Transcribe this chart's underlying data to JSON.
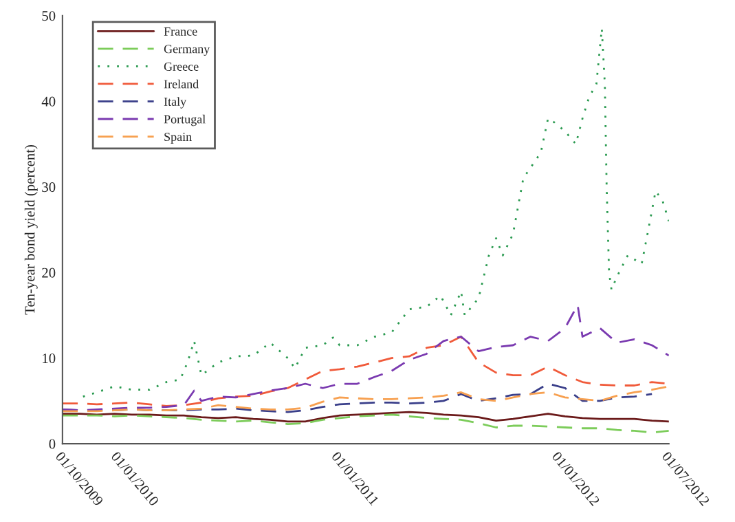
{
  "chart_data": {
    "type": "line",
    "ylabel": "Ten-year bond yield (percent)",
    "x": [
      "2009-10-01",
      "2009-10-30",
      "2009-11-27",
      "2009-12-26",
      "2010-01-24",
      "2010-02-22",
      "2010-03-22",
      "2010-04-20",
      "2010-05-19",
      "2010-06-16",
      "2010-07-15",
      "2010-08-13",
      "2010-09-10",
      "2010-10-09",
      "2010-11-07",
      "2010-12-06",
      "2011-01-03",
      "2011-02-01",
      "2011-03-02",
      "2011-03-30",
      "2011-04-28",
      "2011-05-27",
      "2011-06-24",
      "2011-07-23",
      "2011-08-21",
      "2011-09-19",
      "2011-10-17",
      "2011-11-15",
      "2011-12-14",
      "2012-01-11",
      "2012-02-09",
      "2012-03-09",
      "2012-04-06",
      "2012-05-05",
      "2012-06-03",
      "2012-07-01"
    ],
    "series": [
      {
        "name": "France",
        "color": "#6b1a1a",
        "line_style": "solid",
        "values": [
          3.5,
          3.5,
          3.4,
          3.5,
          3.4,
          3.4,
          3.3,
          3.3,
          3.1,
          3.0,
          3.1,
          2.9,
          2.8,
          2.6,
          2.6,
          3.0,
          3.3,
          3.4,
          3.5,
          3.6,
          3.7,
          3.6,
          3.4,
          3.3,
          3.1,
          2.7,
          2.9,
          3.2,
          3.5,
          3.2,
          3.0,
          2.9,
          2.9,
          2.9,
          2.7,
          2.6
        ]
      },
      {
        "name": "Germany",
        "color": "#7ccc5a",
        "line_style": "dashed",
        "values": [
          3.3,
          3.3,
          3.3,
          3.2,
          3.3,
          3.2,
          3.1,
          3.0,
          2.8,
          2.7,
          2.6,
          2.7,
          2.5,
          2.3,
          2.4,
          2.8,
          3.0,
          3.2,
          3.3,
          3.4,
          3.2,
          3.0,
          2.9,
          2.8,
          2.4,
          1.9,
          2.1,
          2.1,
          2.0,
          1.9,
          1.8,
          1.8,
          1.6,
          1.5,
          1.3,
          1.5
        ]
      },
      {
        "name": "Greece",
        "color": "#2a9a50",
        "line_style": "dotted",
        "x": [
          "2009-11-04",
          "2009-11-27",
          "2009-12-26",
          "2010-01-24",
          "2010-02-22",
          "2010-03-22",
          "2010-04-14",
          "2010-04-26",
          "2010-05-07",
          "2010-05-19",
          "2010-06-16",
          "2010-07-15",
          "2010-08-13",
          "2010-09-10",
          "2010-10-09",
          "2010-10-21",
          "2010-11-07",
          "2010-12-06",
          "2010-12-23",
          "2011-01-03",
          "2011-02-01",
          "2011-03-02",
          "2011-03-30",
          "2011-04-28",
          "2011-05-27",
          "2011-06-19",
          "2011-07-06",
          "2011-07-23",
          "2011-07-29",
          "2011-08-21",
          "2011-09-07",
          "2011-09-19",
          "2011-09-30",
          "2011-10-17",
          "2011-11-03",
          "2011-12-02",
          "2011-12-14",
          "2011-12-25",
          "2012-01-11",
          "2012-01-29",
          "2012-02-09",
          "2012-02-20",
          "2012-03-03",
          "2012-03-12",
          "2012-03-17",
          "2012-03-20",
          "2012-03-24",
          "2012-03-28",
          "2012-04-06",
          "2012-04-24",
          "2012-05-17",
          "2012-05-28",
          "2012-06-09",
          "2012-06-20",
          "2012-07-01"
        ],
        "values": [
          5.5,
          6.0,
          6.7,
          6.3,
          6.3,
          7.2,
          7.5,
          9.5,
          12.0,
          8.0,
          9.5,
          10.2,
          10.3,
          11.8,
          10.0,
          8.8,
          11.2,
          11.5,
          12.4,
          11.5,
          11.5,
          12.5,
          13.0,
          15.7,
          16.0,
          17.3,
          15.0,
          17.8,
          15.0,
          17.0,
          22.0,
          24.0,
          22.0,
          24.5,
          31.0,
          34.0,
          38.0,
          37.5,
          36.5,
          35.0,
          38.0,
          40.5,
          42.0,
          48.5,
          42.0,
          30.0,
          20.0,
          18.0,
          19.5,
          22.0,
          21.0,
          25.0,
          29.5,
          28.5,
          26.0
        ]
      },
      {
        "name": "Ireland",
        "color": "#f05a3a",
        "line_style": "dashed",
        "values": [
          4.7,
          4.7,
          4.6,
          4.7,
          4.8,
          4.6,
          4.4,
          4.5,
          4.8,
          5.3,
          5.5,
          5.6,
          6.1,
          6.5,
          7.5,
          8.5,
          8.7,
          9.0,
          9.5,
          10.0,
          10.2,
          11.2,
          11.5,
          12.5,
          9.5,
          8.3,
          8.0,
          8.0,
          9.0,
          8.0,
          7.2,
          6.9,
          6.8,
          6.8,
          7.2,
          7.0
        ]
      },
      {
        "name": "Italy",
        "color": "#3a3f8a",
        "line_style": "dashed",
        "values": [
          4.0,
          3.9,
          3.9,
          3.9,
          4.0,
          3.9,
          3.9,
          3.9,
          4.0,
          4.0,
          4.1,
          3.9,
          3.8,
          3.7,
          3.9,
          4.3,
          4.6,
          4.7,
          4.8,
          4.8,
          4.7,
          4.8,
          5.0,
          5.8,
          5.0,
          5.3,
          5.7,
          5.8,
          7.0,
          6.5,
          5.0,
          5.0,
          5.4,
          5.5,
          5.8,
          null
        ]
      },
      {
        "name": "Portugal",
        "color": "#7a3ab0",
        "line_style": "dashed",
        "x": [
          "2009-10-01",
          "2009-10-30",
          "2009-11-27",
          "2009-12-26",
          "2010-01-24",
          "2010-02-22",
          "2010-03-22",
          "2010-04-20",
          "2010-05-07",
          "2010-05-19",
          "2010-06-16",
          "2010-07-15",
          "2010-08-13",
          "2010-09-10",
          "2010-10-09",
          "2010-11-07",
          "2010-12-06",
          "2011-01-03",
          "2011-02-01",
          "2011-03-02",
          "2011-03-30",
          "2011-04-28",
          "2011-05-27",
          "2011-06-24",
          "2011-07-23",
          "2011-08-21",
          "2011-09-19",
          "2011-10-17",
          "2011-11-15",
          "2011-12-14",
          "2012-01-11",
          "2012-02-01",
          "2012-02-09",
          "2012-03-09",
          "2012-04-06",
          "2012-05-05",
          "2012-06-03",
          "2012-07-01"
        ],
        "values": [
          4.0,
          3.9,
          4.0,
          4.1,
          4.2,
          4.2,
          4.3,
          4.5,
          6.2,
          5.0,
          5.5,
          5.4,
          5.8,
          6.2,
          6.5,
          7.0,
          6.5,
          7.0,
          7.0,
          7.8,
          8.5,
          9.8,
          10.5,
          12.0,
          12.5,
          10.8,
          11.3,
          11.5,
          12.5,
          12.0,
          13.5,
          16.2,
          12.5,
          13.5,
          11.8,
          12.2,
          11.5,
          10.3
        ]
      },
      {
        "name": "Spain",
        "color": "#f7a050",
        "line_style": "dashed",
        "values": [
          3.8,
          3.8,
          3.8,
          3.9,
          4.0,
          3.9,
          3.9,
          4.0,
          4.1,
          4.5,
          4.3,
          4.1,
          4.0,
          4.0,
          4.2,
          4.9,
          5.4,
          5.3,
          5.2,
          5.2,
          5.3,
          5.4,
          5.6,
          6.0,
          5.2,
          5.0,
          5.4,
          5.8,
          6.0,
          5.4,
          5.2,
          5.0,
          5.6,
          6.0,
          6.3,
          6.7
        ]
      }
    ],
    "xlim": [
      "2009-10-01",
      "2012-07-01"
    ],
    "xticks": [
      {
        "value": "2009-10-01",
        "label": "01/10/2009"
      },
      {
        "value": "2010-01-01",
        "label": "01/01/2010"
      },
      {
        "value": "2011-01-01",
        "label": "01/01/2011"
      },
      {
        "value": "2012-01-01",
        "label": "01/01/2012"
      },
      {
        "value": "2012-07-01",
        "label": "01/07/2012"
      }
    ],
    "ylim": [
      0,
      50
    ],
    "yticks": [
      0,
      10,
      20,
      30,
      40,
      50
    ],
    "grid": false,
    "legend": "top left",
    "marker": "none"
  }
}
